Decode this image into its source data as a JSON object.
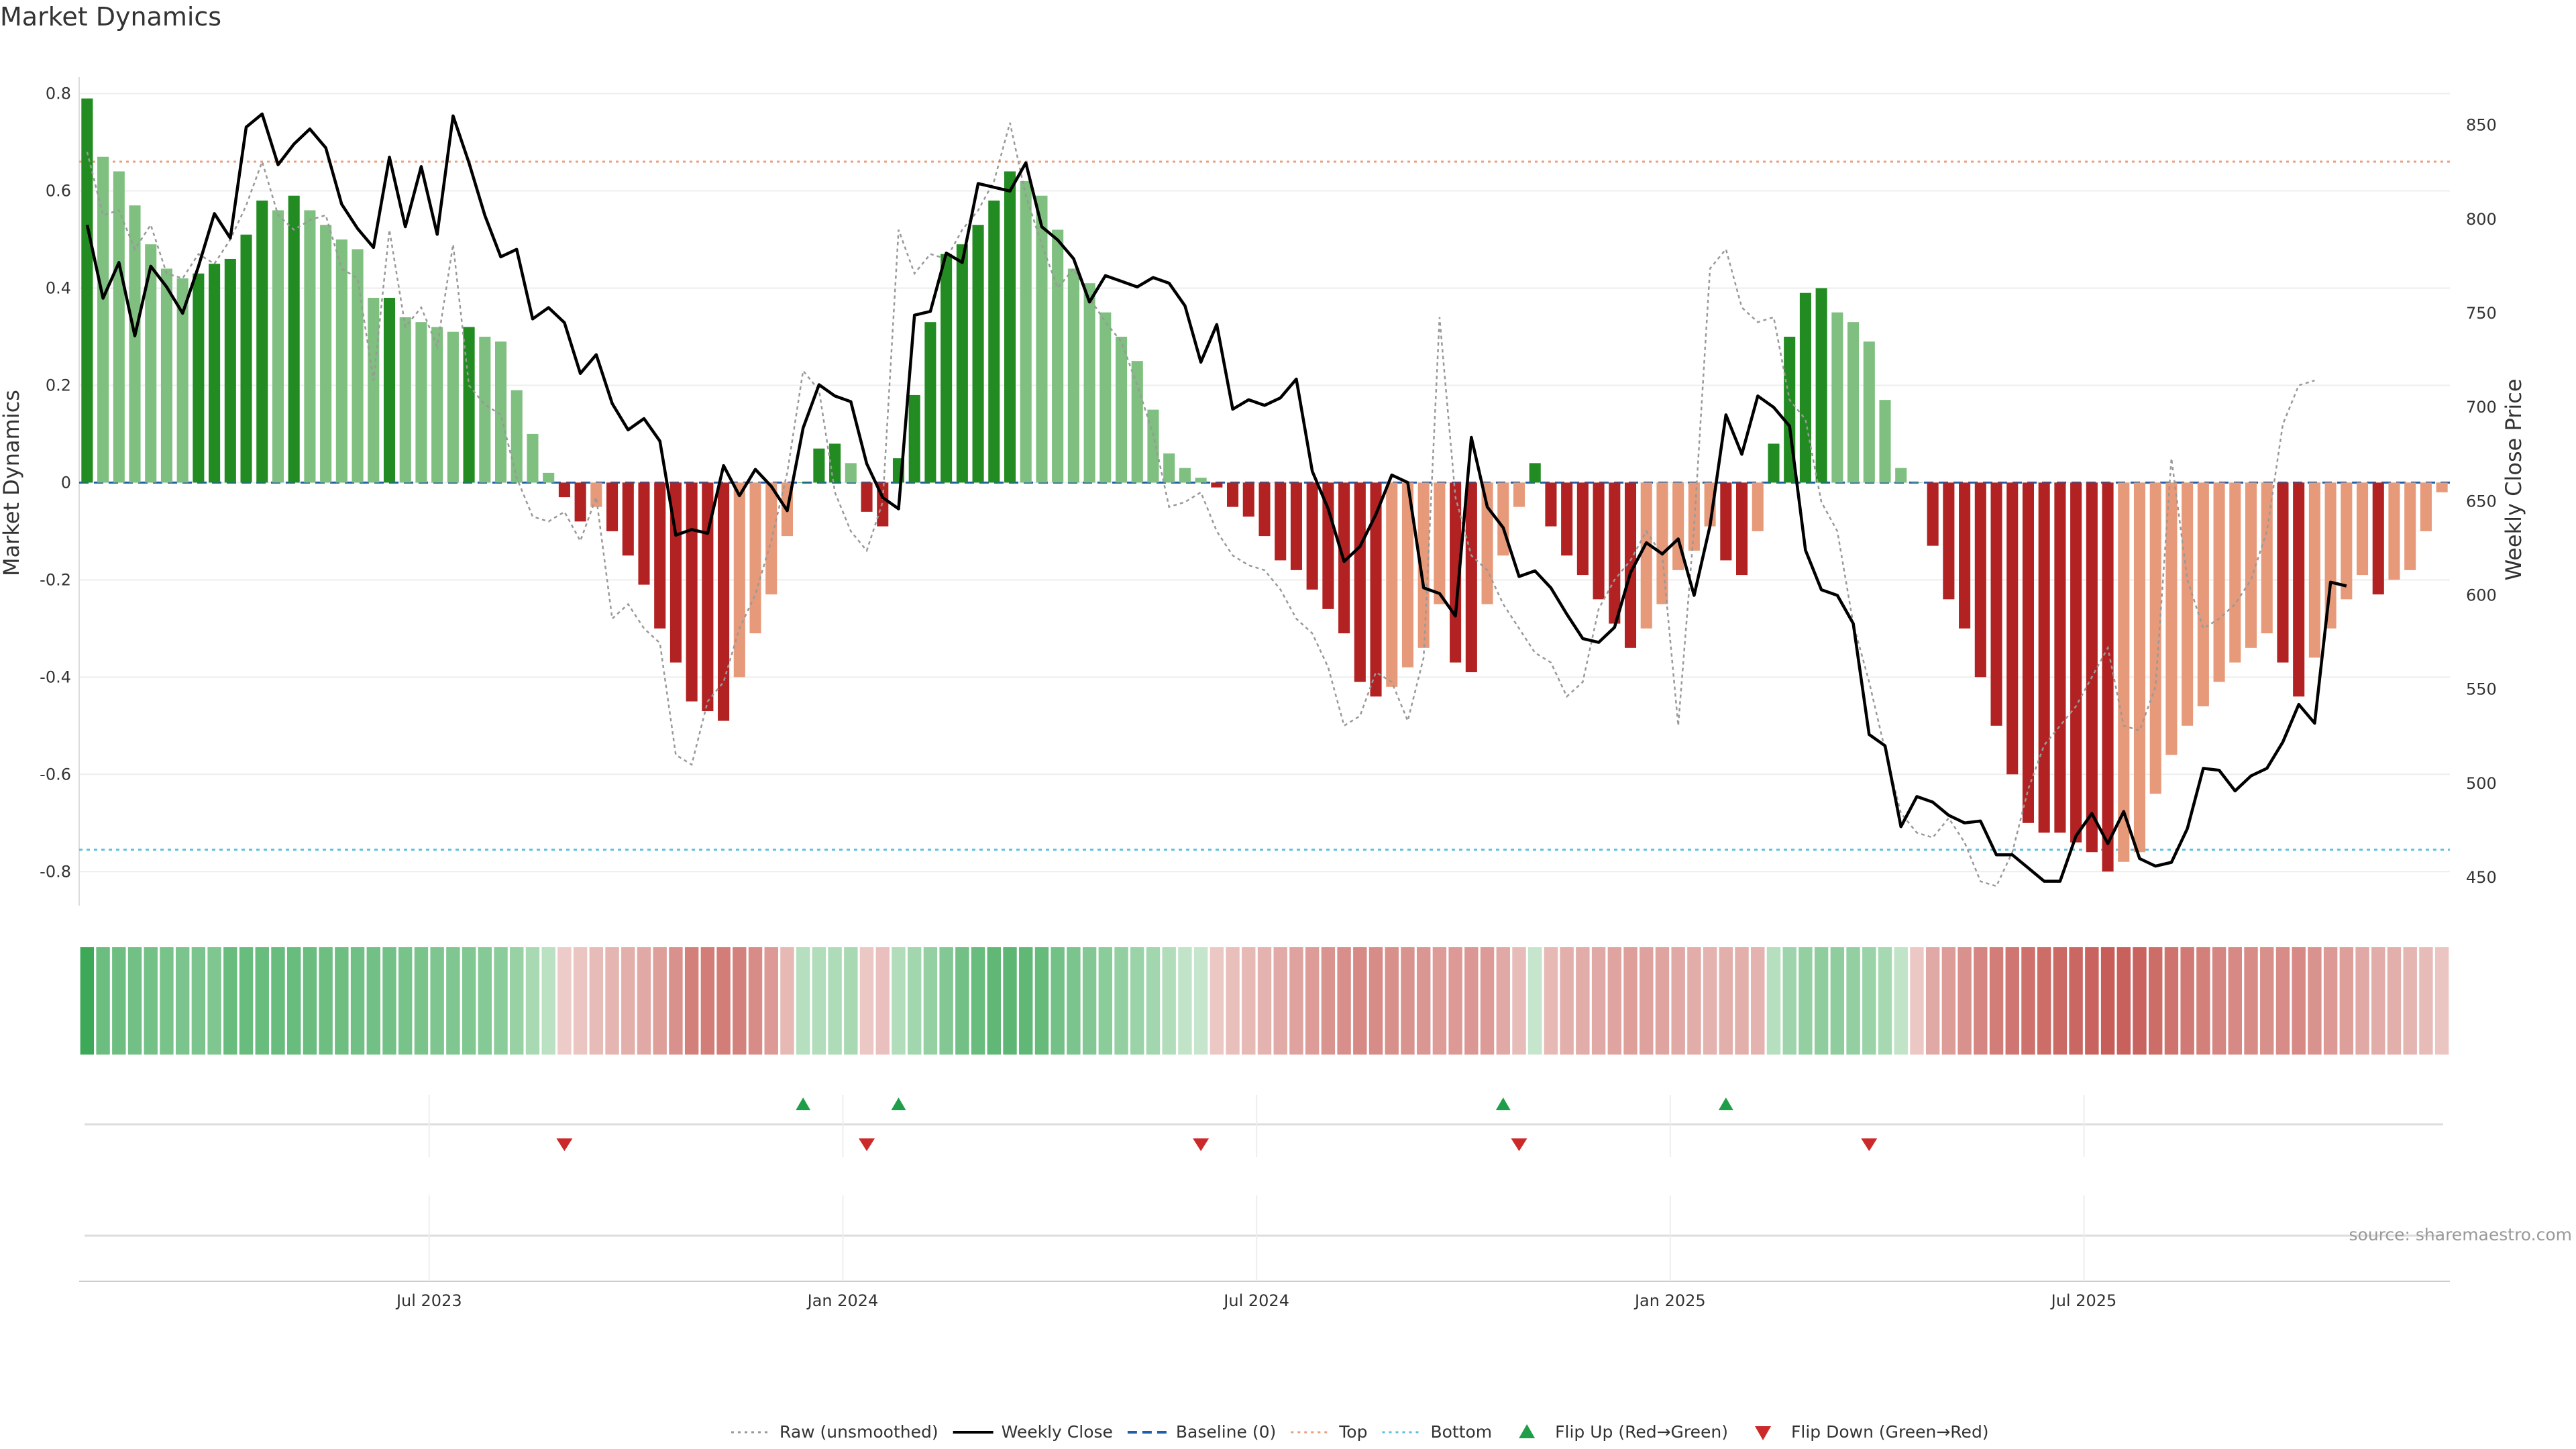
{
  "chart_data": {
    "type": "bar",
    "title": "Market Dynamics",
    "ylabel_left": "Market Dynamics",
    "ylabel_right": "Weekly Close Price",
    "ylim_left": [
      -0.87,
      0.82
    ],
    "ylim_right": [
      435,
      872
    ],
    "y_ticks_left": [
      0.8,
      0.6,
      0.4,
      0.2,
      0,
      -0.2,
      -0.4,
      -0.6,
      -0.8
    ],
    "y_tick_labels_left": [
      "0.8",
      "0.6",
      "0.4",
      "0.2",
      "0",
      "-0.2",
      "-0.4",
      "-0.6",
      "-0.8"
    ],
    "y_ticks_right": [
      850,
      800,
      750,
      700,
      650,
      600,
      550,
      500,
      450
    ],
    "y_tick_labels_right": [
      "850",
      "800",
      "750",
      "700",
      "650",
      "600",
      "550",
      "500",
      "450"
    ],
    "x_ticks": [
      {
        "label": "Jul 2023",
        "index": 22
      },
      {
        "label": "Jan 2024",
        "index": 48
      },
      {
        "label": "Jul 2024",
        "index": 74
      },
      {
        "label": "Jan 2025",
        "index": 100
      },
      {
        "label": "Jul 2025",
        "index": 126
      }
    ],
    "top_line": 0.66,
    "bottom_line": -0.755,
    "baseline": 0,
    "colors": {
      "strong_green": "#228b22",
      "light_green": "#7fbf7f",
      "strong_red": "#b22222",
      "light_red": "#e79a7a",
      "top": "#e8a080",
      "bottom": "#5bc0de",
      "baseline": "#1f5fa8",
      "close": "#000000",
      "raw": "#999999",
      "flip_up": "#1f9e4a",
      "flip_down": "#cc2a2a"
    },
    "series": [
      {
        "name": "Market Dynamics",
        "values": [
          0.79,
          0.67,
          0.64,
          0.57,
          0.49,
          0.44,
          0.42,
          0.43,
          0.45,
          0.46,
          0.51,
          0.58,
          0.56,
          0.59,
          0.56,
          0.53,
          0.5,
          0.48,
          0.38,
          0.38,
          0.34,
          0.33,
          0.32,
          0.31,
          0.32,
          0.3,
          0.29,
          0.19,
          0.1,
          0.02,
          -0.03,
          -0.08,
          -0.05,
          -0.1,
          -0.15,
          -0.21,
          -0.3,
          -0.37,
          -0.45,
          -0.47,
          -0.49,
          -0.4,
          -0.31,
          -0.23,
          -0.11,
          0.0,
          0.07,
          0.08,
          0.04,
          -0.06,
          -0.09,
          0.05,
          0.18,
          0.33,
          0.47,
          0.49,
          0.53,
          0.58,
          0.64,
          0.62,
          0.59,
          0.52,
          0.44,
          0.41,
          0.35,
          0.3,
          0.25,
          0.15,
          0.06,
          0.03,
          0.01,
          -0.01,
          -0.05,
          -0.07,
          -0.11,
          -0.16,
          -0.18,
          -0.22,
          -0.26,
          -0.31,
          -0.41,
          -0.44,
          -0.42,
          -0.38,
          -0.34,
          -0.25,
          -0.37,
          -0.39,
          -0.25,
          -0.15,
          -0.05,
          0.04,
          -0.09,
          -0.15,
          -0.19,
          -0.24,
          -0.29,
          -0.34,
          -0.3,
          -0.25,
          -0.18,
          -0.14,
          -0.09,
          -0.16,
          -0.19,
          -0.1,
          0.08,
          0.3,
          0.39,
          0.4,
          0.35,
          0.33,
          0.29,
          0.17,
          0.03,
          0.0,
          -0.13,
          -0.24,
          -0.3,
          -0.4,
          -0.5,
          -0.6,
          -0.7,
          -0.72,
          -0.72,
          -0.74,
          -0.76,
          -0.8,
          -0.78,
          -0.76,
          -0.64,
          -0.56,
          -0.5,
          -0.46,
          -0.41,
          -0.37,
          -0.34,
          -0.31,
          -0.37,
          -0.44,
          -0.36,
          -0.3,
          -0.24,
          -0.19,
          -0.23,
          -0.2,
          -0.18,
          -0.1,
          -0.02
        ]
      },
      {
        "name": "Weekly Close",
        "values": [
          797,
          758,
          777,
          738,
          775,
          764,
          750,
          775,
          803,
          790,
          849,
          856,
          829,
          840,
          848,
          838,
          808,
          795,
          785,
          833,
          796,
          828,
          792,
          855,
          830,
          802,
          780,
          784,
          747,
          753,
          745,
          718,
          728,
          702,
          688,
          694,
          682,
          632,
          635,
          633,
          669,
          653,
          667,
          658,
          645,
          689,
          712,
          706,
          703,
          670,
          652,
          646,
          749,
          751,
          782,
          777,
          819,
          817,
          815,
          830,
          796,
          789,
          779,
          756,
          770,
          767,
          764,
          769,
          766,
          754,
          724,
          744,
          699,
          704,
          701,
          705,
          715,
          666,
          646,
          618,
          626,
          643,
          664,
          660,
          604,
          601,
          589,
          684,
          647,
          636,
          610,
          613,
          604,
          590,
          577,
          575,
          583,
          612,
          628,
          622,
          630,
          600,
          637,
          696,
          675,
          706,
          700,
          690,
          624,
          603,
          600,
          585,
          526,
          520,
          477,
          493,
          490,
          483,
          479,
          480,
          462,
          462,
          455,
          448,
          448,
          472,
          484,
          468,
          485,
          460,
          456,
          458,
          476,
          508,
          507,
          496,
          504,
          508,
          522,
          542,
          532,
          607,
          605
        ]
      },
      {
        "name": "Raw (unsmoothed)",
        "values": [
          0.68,
          0.55,
          0.56,
          0.48,
          0.53,
          0.43,
          0.42,
          0.47,
          0.45,
          0.5,
          0.57,
          0.66,
          0.55,
          0.52,
          0.54,
          0.55,
          0.44,
          0.42,
          0.21,
          0.52,
          0.32,
          0.36,
          0.28,
          0.49,
          0.2,
          0.16,
          0.14,
          0.01,
          -0.07,
          -0.08,
          -0.06,
          -0.12,
          -0.03,
          -0.28,
          -0.25,
          -0.3,
          -0.33,
          -0.56,
          -0.58,
          -0.45,
          -0.41,
          -0.3,
          -0.23,
          -0.12,
          0.02,
          0.23,
          0.19,
          -0.02,
          -0.1,
          -0.14,
          -0.04,
          0.52,
          0.43,
          0.47,
          0.46,
          0.52,
          0.56,
          0.62,
          0.74,
          0.59,
          0.49,
          0.4,
          0.44,
          0.38,
          0.33,
          0.29,
          0.2,
          0.1,
          -0.05,
          -0.04,
          -0.02,
          -0.1,
          -0.15,
          -0.17,
          -0.18,
          -0.22,
          -0.28,
          -0.31,
          -0.38,
          -0.5,
          -0.48,
          -0.39,
          -0.41,
          -0.49,
          -0.36,
          0.34,
          -0.03,
          -0.15,
          -0.18,
          -0.25,
          -0.3,
          -0.35,
          -0.37,
          -0.44,
          -0.41,
          -0.26,
          -0.2,
          -0.16,
          -0.1,
          -0.15,
          -0.5,
          -0.09,
          0.44,
          0.48,
          0.36,
          0.33,
          0.34,
          0.17,
          0.13,
          -0.04,
          -0.1,
          -0.29,
          -0.41,
          -0.55,
          -0.68,
          -0.72,
          -0.73,
          -0.69,
          -0.74,
          -0.82,
          -0.83,
          -0.76,
          -0.63,
          -0.54,
          -0.5,
          -0.46,
          -0.4,
          -0.34,
          -0.5,
          -0.51,
          -0.42,
          0.05,
          -0.2,
          -0.3,
          -0.28,
          -0.25,
          -0.2,
          -0.1,
          0.12,
          0.2,
          0.21
        ]
      }
    ],
    "regime_strip_values": [
      0.8,
      0.56,
      0.55,
      0.53,
      0.52,
      0.5,
      0.48,
      0.48,
      0.46,
      0.58,
      0.58,
      0.58,
      0.58,
      0.58,
      0.57,
      0.55,
      0.55,
      0.54,
      0.53,
      0.52,
      0.5,
      0.49,
      0.47,
      0.46,
      0.45,
      0.43,
      0.4,
      0.34,
      0.25,
      0.16,
      -0.08,
      -0.12,
      -0.18,
      -0.22,
      -0.26,
      -0.3,
      -0.36,
      -0.45,
      -0.56,
      -0.58,
      -0.58,
      -0.55,
      -0.48,
      -0.4,
      -0.2,
      0.18,
      0.2,
      0.22,
      0.25,
      -0.1,
      -0.15,
      0.2,
      0.28,
      0.35,
      0.44,
      0.53,
      0.58,
      0.62,
      0.64,
      0.62,
      0.59,
      0.52,
      0.48,
      0.44,
      0.4,
      0.36,
      0.32,
      0.28,
      0.2,
      0.12,
      0.1,
      -0.1,
      -0.16,
      -0.2,
      -0.24,
      -0.29,
      -0.34,
      -0.38,
      -0.43,
      -0.47,
      -0.5,
      -0.48,
      -0.46,
      -0.44,
      -0.42,
      -0.38,
      -0.4,
      -0.41,
      -0.39,
      -0.3,
      -0.18,
      0.1,
      -0.2,
      -0.26,
      -0.28,
      -0.3,
      -0.33,
      -0.36,
      -0.35,
      -0.33,
      -0.3,
      -0.28,
      -0.24,
      -0.26,
      -0.26,
      -0.24,
      0.18,
      0.3,
      0.36,
      0.38,
      0.38,
      0.36,
      0.32,
      0.26,
      0.12,
      -0.1,
      -0.3,
      -0.38,
      -0.45,
      -0.52,
      -0.58,
      -0.62,
      -0.66,
      -0.68,
      -0.7,
      -0.72,
      -0.74,
      -0.78,
      -0.76,
      -0.74,
      -0.68,
      -0.64,
      -0.6,
      -0.56,
      -0.52,
      -0.5,
      -0.48,
      -0.46,
      -0.48,
      -0.5,
      -0.44,
      -0.4,
      -0.36,
      -0.3,
      -0.28,
      -0.26,
      -0.22,
      -0.18,
      -0.12
    ],
    "flip_up_indices": [
      45,
      51,
      89,
      103
    ],
    "flip_down_indices": [
      30,
      49,
      70,
      90,
      112
    ],
    "legend": [
      {
        "label": "Raw (unsmoothed)",
        "kind": "dotted-line",
        "color": "#999999"
      },
      {
        "label": "Weekly Close",
        "kind": "solid-line",
        "color": "#000000"
      },
      {
        "label": "Baseline (0)",
        "kind": "dashed-line",
        "color": "#1f5fa8"
      },
      {
        "label": "Top",
        "kind": "dotted-line",
        "color": "#e8a080"
      },
      {
        "label": "Bottom",
        "kind": "dotted-line",
        "color": "#5bc0de"
      },
      {
        "label": "Flip Up (Red→Green)",
        "kind": "triangle-up",
        "color": "#1f9e4a"
      },
      {
        "label": "Flip Down (Green→Red)",
        "kind": "triangle-down",
        "color": "#cc2a2a"
      }
    ],
    "source": "source: sharemaestro.com"
  }
}
